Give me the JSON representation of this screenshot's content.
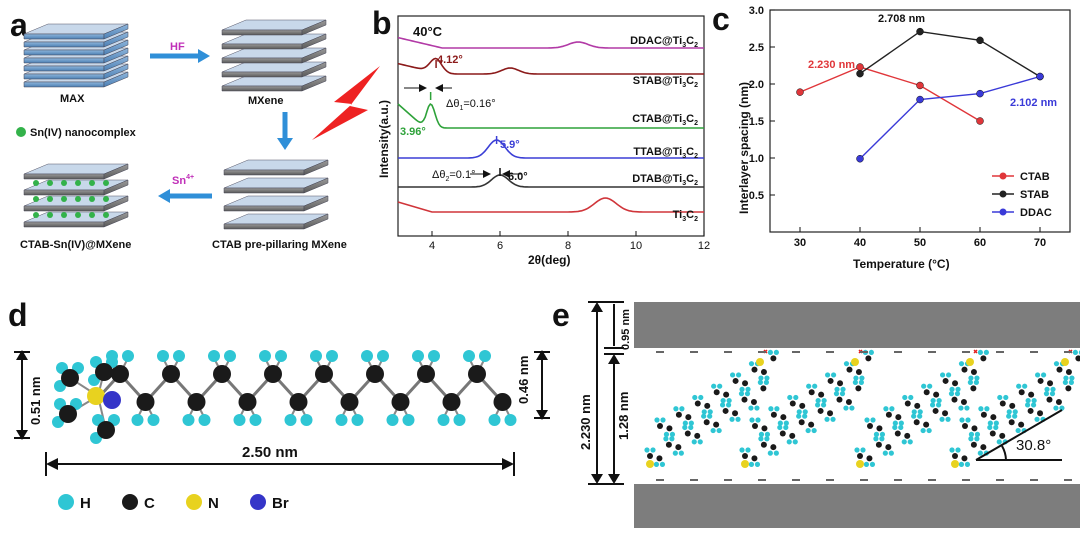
{
  "panels": {
    "a": {
      "label": "a",
      "max": "MAX",
      "hf": "HF",
      "mxene": "MXene",
      "legend": "Sn(IV) nanocomplex",
      "sn": "Sn",
      "sn_sup": "4+",
      "product": "CTAB-Sn(IV)@MXene",
      "prepillar": "CTAB pre-pillaring MXene"
    },
    "b": {
      "label": "b",
      "temp": "40°C",
      "traces": [
        {
          "name": "DDAC@Ti",
          "sub": "3",
          "name2": "C",
          "sub2": "2",
          "color": "#b23aa6"
        },
        {
          "name": "STAB@Ti",
          "sub": "3",
          "name2": "C",
          "sub2": "2",
          "color": "#8b1a1a"
        },
        {
          "name": "CTAB@Ti",
          "sub": "3",
          "name2": "C",
          "sub2": "2",
          "color": "#2ea23a"
        },
        {
          "name": "TTAB@Ti",
          "sub": "3",
          "name2": "C",
          "sub2": "2",
          "color": "#3b3fd6"
        },
        {
          "name": "DTAB@Ti",
          "sub": "3",
          "name2": "C",
          "sub2": "2",
          "color": "#333333"
        },
        {
          "name": "Ti",
          "sub": "3",
          "name2": "C",
          "sub2": "2",
          "color": "#d0353a"
        }
      ],
      "ann_412": "4.12°",
      "ann_396": "3.96°",
      "ann_59": "5.9°",
      "ann_60": "6.0°",
      "ann_d1_pre": "Δθ",
      "ann_d1_sub": "1",
      "ann_d1_post": "=0.16°",
      "ann_d2_pre": "Δθ",
      "ann_d2_sub": "2",
      "ann_d2_post": "=0.1°",
      "xticks": [
        "4",
        "6",
        "8",
        "10",
        "12"
      ],
      "xlabel": "2θ(deg)",
      "ylabel": "Intensity(a.u.)"
    },
    "c": {
      "label": "c",
      "ann_2708": "2.708 nm",
      "ann_2230": "2.230 nm",
      "ann_2102": "2.102 nm",
      "xlabel": "Temperature (°C)",
      "ylabel": "Interlayer spacing (nm)"
    },
    "d": {
      "label": "d",
      "dim_051": "0.51 nm",
      "dim_046": "0.46 nm",
      "dim_250": "2.50 nm",
      "legend": [
        {
          "label": "H",
          "color": "#2fc6d4"
        },
        {
          "label": "C",
          "color": "#1a1a1a"
        },
        {
          "label": "N",
          "color": "#e8d21f"
        },
        {
          "label": "Br",
          "color": "#3535c8"
        }
      ]
    },
    "e": {
      "label": "e",
      "dim_095": "0.95 nm",
      "dim_2230": "2.230 nm",
      "dim_128": "1.28 nm",
      "angle": "30.8°"
    }
  },
  "chart_data": [
    {
      "type": "line",
      "panel": "c",
      "xlabel": "Temperature (°C)",
      "ylabel": "Interlayer spacing (nm)",
      "xlim": [
        25,
        75
      ],
      "ylim": [
        0,
        3.0
      ],
      "xticks": [
        30,
        40,
        50,
        60,
        70
      ],
      "yticks": [
        0.5,
        1.0,
        1.5,
        2.0,
        2.5,
        3.0
      ],
      "legend_position": "bottom-right",
      "series": [
        {
          "name": "CTAB",
          "color": "#e0363a",
          "x": [
            30,
            40,
            50,
            60
          ],
          "y": [
            1.89,
            2.23,
            1.98,
            1.5
          ]
        },
        {
          "name": "STAB",
          "color": "#222222",
          "x": [
            40,
            50,
            60,
            70
          ],
          "y": [
            2.14,
            2.708,
            2.59,
            2.1
          ]
        },
        {
          "name": "DDAC",
          "color": "#3a3ad8",
          "x": [
            40,
            50,
            60,
            70
          ],
          "y": [
            0.99,
            1.79,
            1.87,
            2.102
          ]
        }
      ]
    },
    {
      "type": "line",
      "panel": "b",
      "xlabel": "2θ(deg)",
      "ylabel": "Intensity(a.u.)",
      "xlim": [
        3,
        12
      ],
      "xticks": [
        4,
        6,
        8,
        10,
        12
      ],
      "series": [
        {
          "name": "DDAC@Ti3C2",
          "color": "#b23aa6",
          "peaks_x": [
            8.3
          ]
        },
        {
          "name": "STAB@Ti3C2",
          "color": "#8b1a1a",
          "peaks_x": [
            4.12,
            6.3
          ]
        },
        {
          "name": "CTAB@Ti3C2",
          "color": "#2ea23a",
          "peaks_x": [
            3.96
          ]
        },
        {
          "name": "TTAB@Ti3C2",
          "color": "#3b3fd6",
          "peaks_x": [
            5.9
          ]
        },
        {
          "name": "DTAB@Ti3C2",
          "color": "#333333",
          "peaks_x": [
            6.0
          ]
        },
        {
          "name": "Ti3C2",
          "color": "#d0353a",
          "peaks_x": [
            9.1
          ]
        }
      ]
    }
  ]
}
